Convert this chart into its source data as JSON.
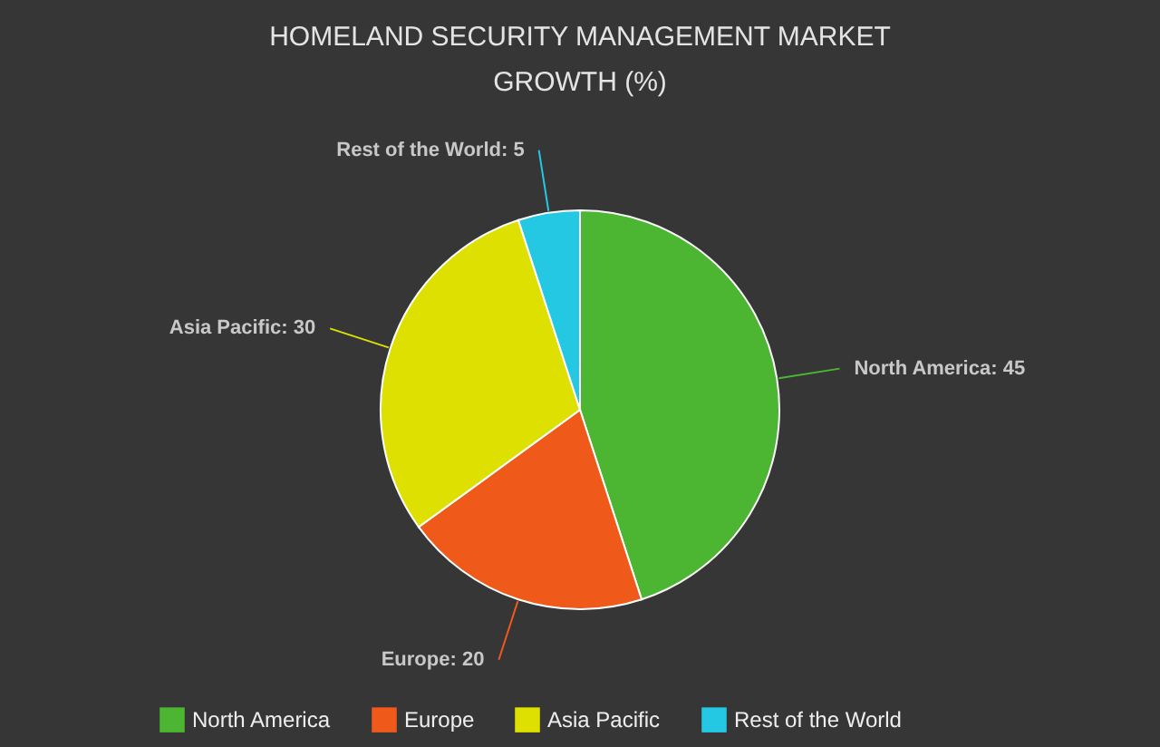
{
  "chart_data": {
    "type": "pie",
    "title": "HOMELAND SECURITY MANAGEMENT MARKET GROWTH (%)",
    "categories": [
      "North America",
      "Europe",
      "Asia Pacific",
      "Rest of the World"
    ],
    "values": [
      45,
      20,
      30,
      5
    ],
    "value_labels": [
      "North America: 45",
      "Europe: 20",
      "Asia Pacific: 30",
      "Rest of the World: 5"
    ],
    "colors": [
      "#4cb531",
      "#ef5a1b",
      "#dde000",
      "#25c8e3"
    ],
    "legend": "bottom"
  }
}
